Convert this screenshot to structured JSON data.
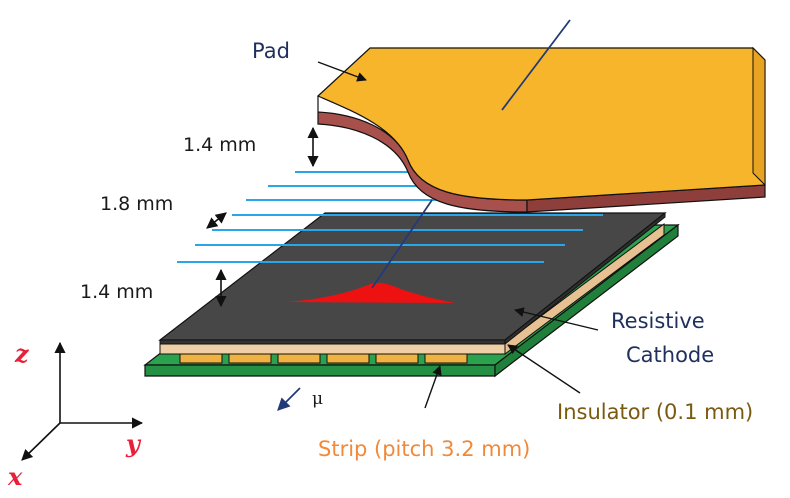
{
  "labels": {
    "pad": "Pad",
    "gap_top": "1.4 mm",
    "pitch": "1.8 mm",
    "gap_bottom": "1.4 mm",
    "resistive": "Resistive",
    "cathode": "Cathode",
    "insulator": "Insulator (0.1 mm)",
    "strip": "Strip (pitch 3.2 mm)",
    "mu": "μ"
  },
  "axes": {
    "z": "z",
    "y": "y",
    "x": "x"
  },
  "colors": {
    "pad_top": "#f7b52c",
    "pad_side": "#a8504c",
    "resistive": "#474747",
    "insulator": "#f0cfa6",
    "board": "#2aa24e",
    "strip_pad": "#f0b240",
    "wire": "#2aa6e8",
    "signal": "#ee1111",
    "track": "#233a7a",
    "axis_label": "#e8203a"
  }
}
